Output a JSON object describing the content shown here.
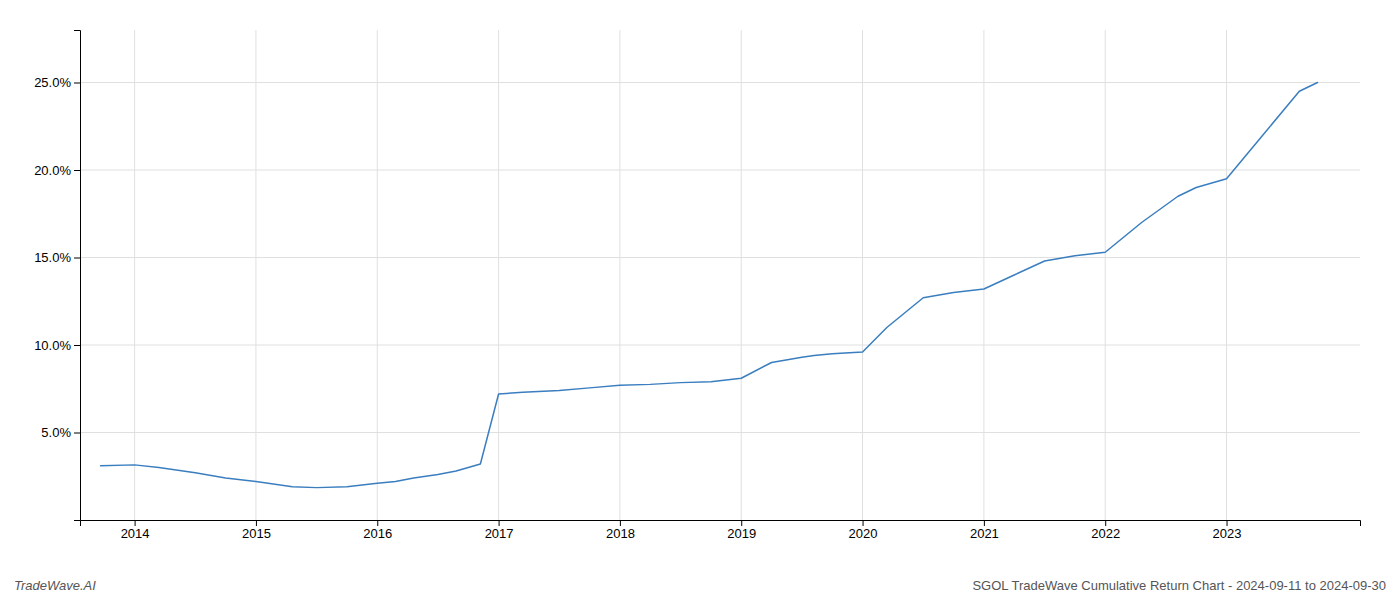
{
  "chart_data": {
    "type": "line",
    "x": [
      2013.72,
      2014.0,
      2014.2,
      2014.5,
      2014.75,
      2015.0,
      2015.3,
      2015.5,
      2015.75,
      2016.0,
      2016.15,
      2016.3,
      2016.5,
      2016.65,
      2016.75,
      2016.85,
      2017.0,
      2017.2,
      2017.5,
      2017.75,
      2018.0,
      2018.25,
      2018.5,
      2018.75,
      2019.0,
      2019.25,
      2019.5,
      2019.6,
      2019.75,
      2020.0,
      2020.2,
      2020.5,
      2020.75,
      2021.0,
      2021.25,
      2021.5,
      2021.75,
      2022.0,
      2022.3,
      2022.6,
      2022.75,
      2023.0,
      2023.3,
      2023.6,
      2023.75
    ],
    "values": [
      3.1,
      3.15,
      3.0,
      2.7,
      2.4,
      2.2,
      1.9,
      1.85,
      1.9,
      2.1,
      2.2,
      2.4,
      2.6,
      2.8,
      3.0,
      3.2,
      7.2,
      7.3,
      7.4,
      7.55,
      7.7,
      7.75,
      7.85,
      7.9,
      8.1,
      9.0,
      9.3,
      9.4,
      9.5,
      9.6,
      11.0,
      12.7,
      13.0,
      13.2,
      14.0,
      14.8,
      15.1,
      15.3,
      17.0,
      18.5,
      19.0,
      19.5,
      22.0,
      24.5,
      25.0
    ],
    "color": "#3a7ebf",
    "xlim": [
      2013.55,
      2024.1
    ],
    "xticks": [
      2014,
      2015,
      2016,
      2017,
      2018,
      2019,
      2020,
      2021,
      2022,
      2023
    ],
    "ylim": [
      0.0,
      28.0
    ],
    "yticks": [
      {
        "value": 5.0,
        "label": "5.0%"
      },
      {
        "value": 10.0,
        "label": "10.0%"
      },
      {
        "value": 15.0,
        "label": "15.0%"
      },
      {
        "value": 20.0,
        "label": "20.0%"
      },
      {
        "value": 25.0,
        "label": "25.0%"
      }
    ],
    "grid": true,
    "annotations": [
      "TradeWave.AI",
      "SGOL TradeWave Cumulative Return Chart - 2024-09-11 to 2024-09-30"
    ]
  }
}
